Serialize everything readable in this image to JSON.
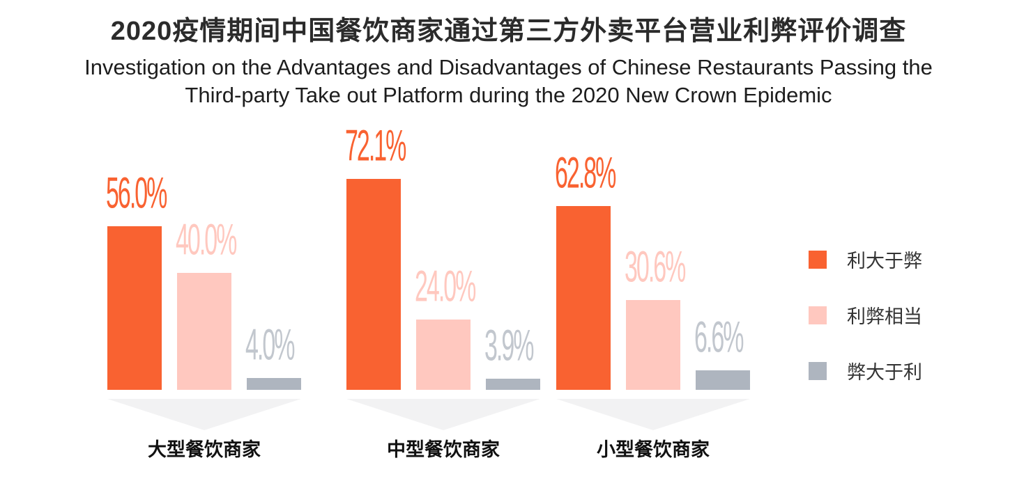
{
  "header": {
    "title_zh": "2020疫情期间中国餐饮商家通过第三方外卖平台营业利弊评价调查",
    "title_en_line1": "Investigation on the Advantages and Disadvantages of Chinese Restaurants Passing the",
    "title_en_line2": "Third-party Take out Platform during the 2020 New Crown Epidemic"
  },
  "chart_data": {
    "type": "bar",
    "title": "2020疫情期间中国餐饮商家通过第三方外卖平台营业利弊评价调查",
    "subtitle": "Investigation on the Advantages and Disadvantages of Chinese Restaurants Passing the Third-party Take out Platform during the 2020 New Crown Epidemic",
    "categories": [
      "大型餐饮商家",
      "中型餐饮商家",
      "小型餐饮商家"
    ],
    "series": [
      {
        "name": "利大于弊",
        "color": "#f96231",
        "label_color": "#f96231",
        "values": [
          56.0,
          72.1,
          62.8
        ],
        "labels": [
          "56.0%",
          "72.1%",
          "62.8%"
        ]
      },
      {
        "name": "利弊相当",
        "color": "#ffc8bf",
        "label_color": "#ffc8bf",
        "values": [
          40.0,
          24.0,
          30.6
        ],
        "labels": [
          "40.0%",
          "24.0%",
          "30.6%"
        ]
      },
      {
        "name": "弊大于利",
        "color": "#aeb5bf",
        "label_color": "#c2c7ce",
        "values": [
          4.0,
          3.9,
          6.6
        ],
        "labels": [
          "4.0%",
          "3.9%",
          "6.6%"
        ]
      }
    ],
    "value_suffix": "%",
    "ylim": [
      0,
      100
    ],
    "grid": false,
    "axes_visible": false,
    "legend_position": "right",
    "category_shadow_color": "#f2f2f3"
  },
  "legend": {
    "items": [
      {
        "label": "利大于弊",
        "color": "#f96231"
      },
      {
        "label": "利弊相当",
        "color": "#ffc8bf"
      },
      {
        "label": "弊大于利",
        "color": "#aeb5bf"
      }
    ]
  }
}
